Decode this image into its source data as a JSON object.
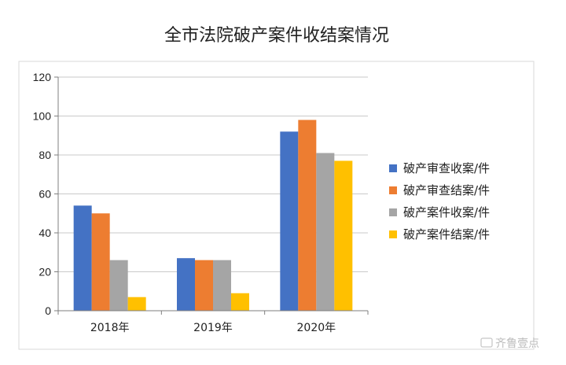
{
  "chart_data": {
    "type": "bar",
    "title": "全市法院破产案件收结案情况",
    "categories": [
      "2018年",
      "2019年",
      "2020年"
    ],
    "ylim": [
      0,
      120
    ],
    "yticks": [
      0,
      20,
      40,
      60,
      80,
      100,
      120
    ],
    "grid": true,
    "legend_position": "right",
    "series": [
      {
        "name": "破产审查收案/件",
        "color": "#4472C4",
        "values": [
          54,
          27,
          92
        ]
      },
      {
        "name": "破产审查结案/件",
        "color": "#ED7D31",
        "values": [
          50,
          26,
          98
        ]
      },
      {
        "name": "破产案件收案/件",
        "color": "#A5A5A5",
        "values": [
          26,
          26,
          81
        ]
      },
      {
        "name": "破产案件结案/件",
        "color": "#FFC000",
        "values": [
          7,
          9,
          77
        ]
      }
    ]
  },
  "watermark": {
    "text": "齐鲁壹点",
    "icon": "camera-icon"
  }
}
